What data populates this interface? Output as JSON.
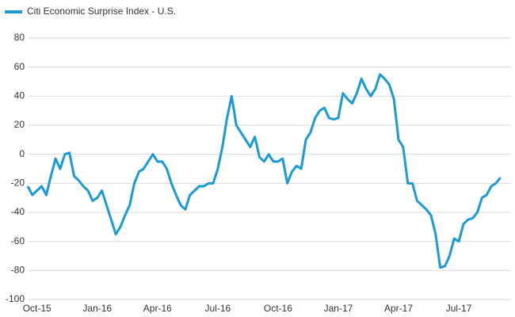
{
  "chart_data": {
    "type": "line",
    "categories": [
      null,
      null,
      "Oct-15",
      null,
      null,
      null,
      null,
      null,
      null,
      null,
      null,
      null,
      null,
      null,
      null,
      "Jan-16",
      null,
      null,
      null,
      null,
      null,
      null,
      null,
      null,
      null,
      null,
      null,
      null,
      "Apr-16",
      null,
      null,
      null,
      null,
      null,
      null,
      null,
      null,
      null,
      null,
      null,
      null,
      "Jul-16",
      null,
      null,
      null,
      null,
      null,
      null,
      null,
      null,
      null,
      null,
      null,
      null,
      "Oct-16",
      null,
      null,
      null,
      null,
      null,
      null,
      null,
      null,
      null,
      null,
      null,
      null,
      "Jan-17",
      null,
      null,
      null,
      null,
      null,
      null,
      null,
      null,
      null,
      null,
      null,
      null,
      "Apr-17",
      null,
      null,
      null,
      null,
      null,
      null,
      null,
      null,
      null,
      null,
      null,
      null,
      "Jul-17",
      null,
      null,
      null,
      null,
      null,
      null,
      null,
      null,
      null
    ],
    "series": [
      {
        "name": "Citi Economic Surprise Index - U.S.",
        "color": "#1a9ad6",
        "values": [
          -22,
          -28,
          -25,
          -22,
          -28,
          -15,
          -3,
          -10,
          0,
          1,
          -15,
          -18,
          -22,
          -25,
          -32,
          -30,
          -25,
          -35,
          -45,
          -55,
          -50,
          -42,
          -35,
          -20,
          -12,
          -10,
          -5,
          0,
          -5,
          -5,
          -10,
          -20,
          -28,
          -35,
          -38,
          -28,
          -25,
          -22,
          -22,
          -20,
          -20,
          -10,
          5,
          25,
          40,
          20,
          15,
          10,
          5,
          12,
          -2,
          -5,
          0,
          -5,
          -5,
          -3,
          -20,
          -12,
          -8,
          -10,
          10,
          15,
          25,
          30,
          32,
          25,
          24,
          25,
          42,
          38,
          35,
          42,
          52,
          45,
          40,
          45,
          55,
          52,
          48,
          38,
          10,
          5,
          -20,
          -20,
          -32,
          -35,
          -38,
          -42,
          -55,
          -78,
          -77,
          -70,
          -58,
          -60,
          -48,
          -45,
          -44,
          -40,
          -30,
          -28,
          -22,
          -20,
          -16
        ]
      }
    ],
    "ylim": [
      -100,
      80
    ],
    "yticks": [
      -100,
      -80,
      -60,
      -40,
      -20,
      0,
      20,
      40,
      60,
      80
    ],
    "grid": true,
    "legend": "top-left"
  }
}
